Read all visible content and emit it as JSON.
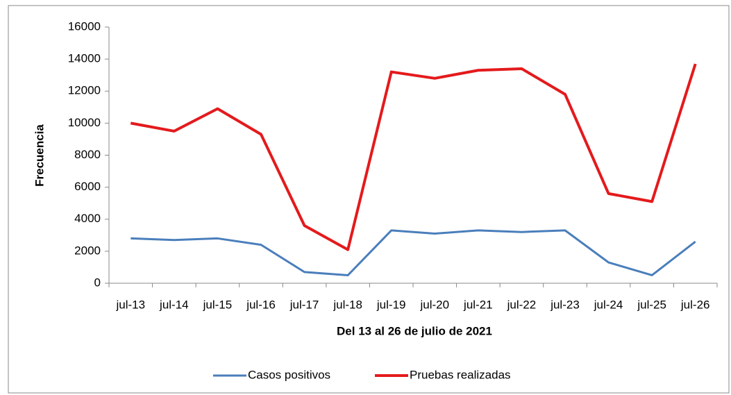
{
  "chart_data": {
    "type": "line",
    "xlabel": "Del 13 al 26 de julio de 2021",
    "ylabel": "Frecuencia",
    "categories": [
      "jul-13",
      "jul-14",
      "jul-15",
      "jul-16",
      "jul-17",
      "jul-18",
      "jul-19",
      "jul-20",
      "jul-21",
      "jul-22",
      "jul-23",
      "jul-24",
      "jul-25",
      "jul-26"
    ],
    "series": [
      {
        "name": "Casos positivos",
        "color": "#4a7ebb",
        "values": [
          2800,
          2700,
          2800,
          2400,
          700,
          500,
          3300,
          3100,
          3300,
          3200,
          3300,
          1300,
          500,
          2600
        ]
      },
      {
        "name": "Pruebas realizadas",
        "color": "#e41a1c",
        "values": [
          10000,
          9500,
          10900,
          9300,
          3600,
          2100,
          13200,
          12800,
          13300,
          13400,
          11800,
          5600,
          5100,
          13700
        ]
      }
    ],
    "ylim": [
      0,
      16000
    ],
    "yticks": [
      0,
      2000,
      4000,
      6000,
      8000,
      10000,
      12000,
      14000,
      16000
    ],
    "legend": "bottom"
  }
}
